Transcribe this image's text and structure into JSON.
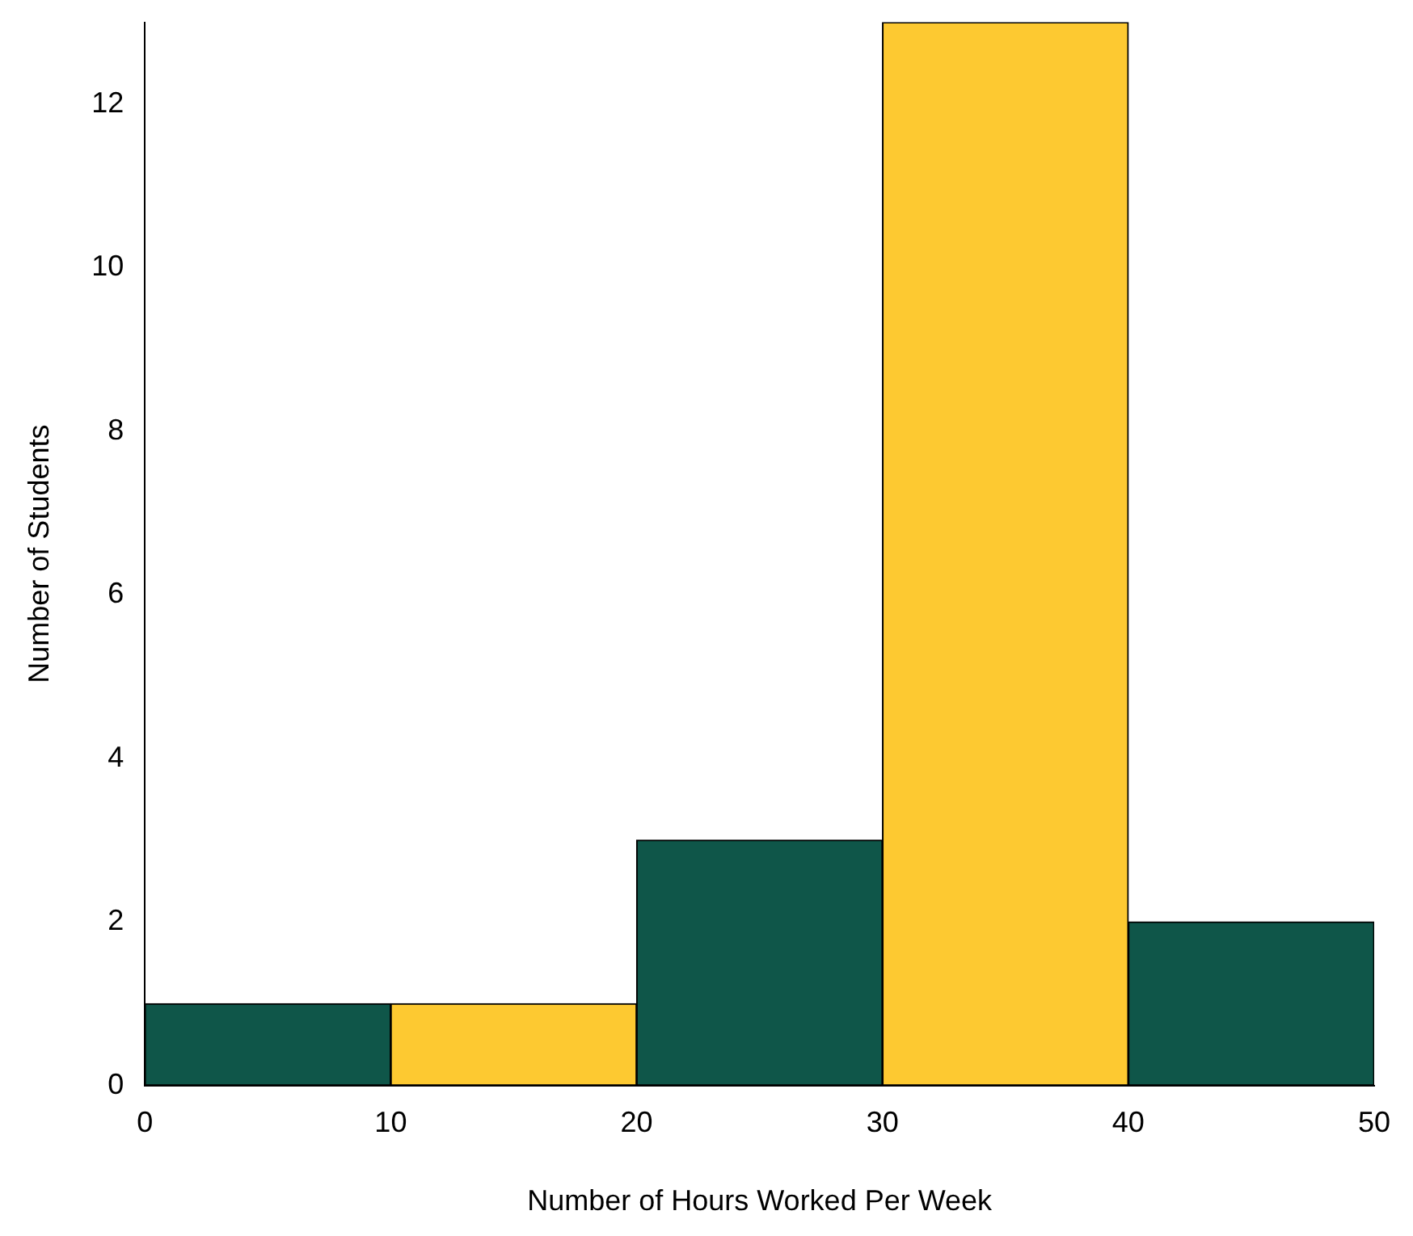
{
  "chart_data": {
    "type": "histogram",
    "xlabel": "Number of Hours Worked Per Week",
    "ylabel": "Number of Students",
    "bins": [
      0,
      10,
      20,
      30,
      40,
      50
    ],
    "values": [
      1,
      1,
      3,
      13,
      2
    ],
    "colors": [
      "#0f5649",
      "#fdc931",
      "#0f5649",
      "#fdc931",
      "#0f5649"
    ],
    "xlim": [
      0,
      50
    ],
    "xticks": [
      0,
      10,
      20,
      30,
      40,
      50
    ],
    "ylim": [
      0,
      13
    ],
    "yticks": [
      0,
      2,
      4,
      6,
      8,
      10,
      12
    ],
    "grid": false,
    "legend": false
  }
}
